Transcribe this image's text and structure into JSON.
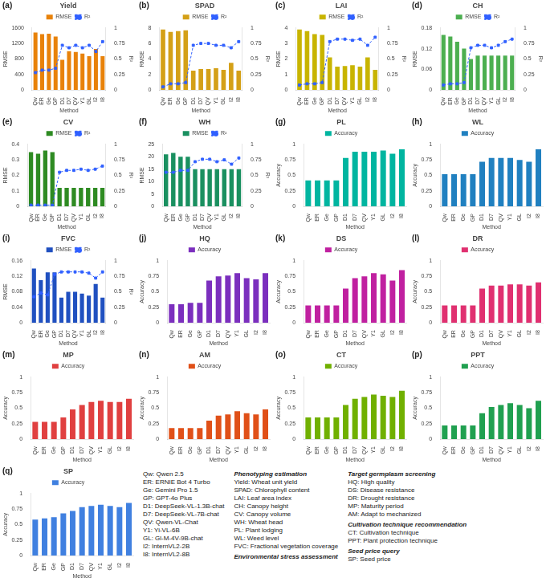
{
  "chart_data": [
    {
      "type": "bar",
      "title": "Yield",
      "annotations": [
        "(a)"
      ],
      "xlabel": "Method",
      "ylabel": "RMSE",
      "y2label": "R²",
      "categories": [
        "Qw",
        "ER",
        "Ge",
        "GP",
        "D1",
        "D7",
        "QV",
        "Y1",
        "GL",
        "I2",
        "I8"
      ],
      "series": [
        {
          "name": "RMSE",
          "color": "#E8820A",
          "values": [
            1480,
            1440,
            1450,
            1380,
            780,
            1000,
            980,
            940,
            870,
            1060,
            870
          ]
        },
        {
          "name": "R²",
          "type": "line",
          "axis": "y2",
          "color": "#3060FF",
          "marker": "square",
          "line_style": "dashed",
          "values": [
            0.28,
            0.32,
            0.32,
            0.35,
            0.72,
            0.68,
            0.72,
            0.68,
            0.72,
            0.62,
            0.78
          ]
        }
      ],
      "ylim": [
        0,
        1600
      ],
      "yticks": [
        0,
        400,
        800,
        1200,
        1600
      ],
      "y2lim": [
        0.0,
        1.0
      ],
      "y2ticks": [
        0,
        0.25,
        0.5,
        0.75,
        1
      ],
      "grid": false,
      "legend": "top"
    },
    {
      "type": "bar",
      "title": "SPAD",
      "annotations": [
        "(b)"
      ],
      "xlabel": "Method",
      "ylabel": "RMSE",
      "y2label": "R²",
      "categories": [
        "Qw",
        "ER",
        "Ge",
        "GP",
        "D1",
        "D7",
        "QV",
        "Y1",
        "GL",
        "I2",
        "I8"
      ],
      "series": [
        {
          "name": "RMSE",
          "color": "#D4A017",
          "values": [
            7.8,
            7.5,
            7.6,
            7.7,
            2.5,
            2.7,
            2.7,
            2.8,
            2.6,
            3.5,
            2.5
          ]
        },
        {
          "name": "R²",
          "type": "line",
          "axis": "y2",
          "color": "#3060FF",
          "marker": "square",
          "line_style": "dashed",
          "values": [
            0.05,
            0.1,
            0.1,
            0.12,
            0.72,
            0.75,
            0.75,
            0.72,
            0.72,
            0.68,
            0.78
          ]
        }
      ],
      "ylim": [
        0,
        8
      ],
      "yticks": [
        0,
        2,
        4,
        6,
        8
      ],
      "y2lim": [
        0.0,
        1.0
      ],
      "y2ticks": [
        0,
        0.25,
        0.5,
        0.75,
        1
      ],
      "grid": false,
      "legend": "top"
    },
    {
      "type": "bar",
      "title": "LAI",
      "annotations": [
        "(c)"
      ],
      "xlabel": "Method",
      "ylabel": "RMSE",
      "y2label": "R²",
      "categories": [
        "Qw",
        "ER",
        "Ge",
        "GP",
        "D1",
        "D7",
        "QV",
        "Y1",
        "GL",
        "I2",
        "I8"
      ],
      "series": [
        {
          "name": "RMSE",
          "color": "#C8B400",
          "values": [
            3.9,
            3.8,
            3.6,
            3.55,
            2.1,
            1.5,
            1.55,
            1.6,
            1.5,
            2.1,
            1.3
          ]
        },
        {
          "name": "R²",
          "type": "line",
          "axis": "y2",
          "color": "#3060FF",
          "marker": "square",
          "line_style": "dashed",
          "values": [
            0.08,
            0.1,
            0.1,
            0.12,
            0.78,
            0.82,
            0.82,
            0.8,
            0.82,
            0.72,
            0.85
          ]
        }
      ],
      "ylim": [
        0,
        4.0
      ],
      "yticks": [
        0,
        1,
        2,
        3,
        4
      ],
      "y2lim": [
        0.0,
        1.0
      ],
      "y2ticks": [
        0,
        0.25,
        0.5,
        0.75,
        1
      ],
      "grid": false,
      "legend": "top"
    },
    {
      "type": "bar",
      "title": "CH",
      "annotations": [
        "(d)"
      ],
      "xlabel": "Method",
      "ylabel": "RMSE",
      "y2label": "R²",
      "categories": [
        "Qw",
        "ER",
        "Ge",
        "GP",
        "D1",
        "D7",
        "QV",
        "Y1",
        "GL",
        "I2",
        "I8"
      ],
      "series": [
        {
          "name": "RMSE",
          "color": "#4CAF50",
          "values": [
            0.16,
            0.155,
            0.14,
            0.12,
            0.09,
            0.1,
            0.1,
            0.1,
            0.1,
            0.1,
            0.1
          ]
        },
        {
          "name": "R²",
          "type": "line",
          "axis": "y2",
          "color": "#3060FF",
          "marker": "square",
          "line_style": "dashed",
          "values": [
            0.08,
            0.1,
            0.1,
            0.12,
            0.68,
            0.72,
            0.72,
            0.68,
            0.72,
            0.78,
            0.82
          ]
        }
      ],
      "ylim": [
        0,
        0.18
      ],
      "yticks": [
        0,
        0.06,
        0.12,
        0.18
      ],
      "y2lim": [
        0.0,
        1.0
      ],
      "y2ticks": [
        0,
        0.25,
        0.5,
        0.75,
        1
      ],
      "grid": false,
      "legend": "top"
    },
    {
      "type": "bar",
      "title": "CV",
      "annotations": [
        "(e)"
      ],
      "xlabel": "Method",
      "ylabel": "RMSE",
      "y2label": "R²",
      "categories": [
        "Qw",
        "ER",
        "Ge",
        "GP",
        "D1",
        "D7",
        "QV",
        "Y1",
        "GL",
        "I2",
        "I8"
      ],
      "series": [
        {
          "name": "RMSE",
          "color": "#2E8B22",
          "values": [
            0.35,
            0.34,
            0.36,
            0.35,
            0.12,
            0.12,
            0.12,
            0.12,
            0.12,
            0.12,
            0.12
          ]
        },
        {
          "name": "R²",
          "type": "line",
          "axis": "y2",
          "color": "#3060FF",
          "marker": "square",
          "line_style": "dashed",
          "values": [
            0.02,
            0.02,
            0.02,
            0.02,
            0.55,
            0.58,
            0.58,
            0.6,
            0.58,
            0.6,
            0.65
          ]
        }
      ],
      "ylim": [
        0,
        0.4
      ],
      "yticks": [
        0,
        0.1,
        0.2,
        0.3,
        0.4
      ],
      "y2lim": [
        0.0,
        1.0
      ],
      "y2ticks": [
        0,
        0.25,
        0.5,
        0.75,
        1
      ],
      "grid": false,
      "legend": "top"
    },
    {
      "type": "bar",
      "title": "WH",
      "annotations": [
        "(f)"
      ],
      "xlabel": "Method",
      "ylabel": "RMSE",
      "y2label": "R²",
      "categories": [
        "Qw",
        "ER",
        "Ge",
        "GP",
        "D1",
        "D7",
        "QV",
        "Y1",
        "GL",
        "I2",
        "I8"
      ],
      "series": [
        {
          "name": "RMSE",
          "color": "#1A9060",
          "values": [
            21,
            21.5,
            20,
            20,
            15,
            15,
            15,
            15,
            15,
            15,
            15
          ]
        },
        {
          "name": "R²",
          "type": "line",
          "axis": "y2",
          "color": "#3060FF",
          "marker": "square",
          "line_style": "dashed",
          "values": [
            0.55,
            0.55,
            0.58,
            0.58,
            0.72,
            0.76,
            0.76,
            0.72,
            0.75,
            0.68,
            0.78
          ]
        }
      ],
      "ylim": [
        0,
        25
      ],
      "yticks": [
        0,
        5,
        10,
        15,
        20,
        25
      ],
      "y2lim": [
        0.0,
        1.0
      ],
      "y2ticks": [
        0,
        0.25,
        0.5,
        0.75,
        1
      ],
      "grid": false,
      "legend": "top"
    },
    {
      "type": "bar",
      "title": "PL",
      "annotations": [
        "(g)"
      ],
      "xlabel": "Method",
      "ylabel": "Accuracy",
      "categories": [
        "Qw",
        "ER",
        "Ge",
        "GP",
        "D1",
        "D7",
        "QV",
        "Y1",
        "GL",
        "I2",
        "I8"
      ],
      "series": [
        {
          "name": "Accuracy",
          "color": "#00B5A0",
          "values": [
            0.42,
            0.42,
            0.42,
            0.42,
            0.78,
            0.88,
            0.88,
            0.88,
            0.9,
            0.85,
            0.92
          ]
        }
      ],
      "ylim": [
        0,
        1.0
      ],
      "yticks": [
        0,
        0.25,
        0.5,
        0.75,
        1
      ],
      "grid": false,
      "legend": "top"
    },
    {
      "type": "bar",
      "title": "WL",
      "annotations": [
        "(h)"
      ],
      "xlabel": "Method",
      "ylabel": "Accuracy",
      "categories": [
        "Qw",
        "ER",
        "Ge",
        "GP",
        "D1",
        "D7",
        "QV",
        "Y1",
        "GL",
        "I2",
        "I8"
      ],
      "series": [
        {
          "name": "Accuracy",
          "color": "#2080C0",
          "values": [
            0.52,
            0.52,
            0.52,
            0.52,
            0.72,
            0.78,
            0.78,
            0.78,
            0.75,
            0.72,
            0.92
          ]
        }
      ],
      "ylim": [
        0,
        1.0
      ],
      "yticks": [
        0,
        0.25,
        0.5,
        0.75,
        1
      ],
      "grid": false,
      "legend": "top"
    },
    {
      "type": "bar",
      "title": "FVC",
      "annotations": [
        "(i)"
      ],
      "xlabel": "Method",
      "ylabel": "RMSE",
      "y2label": "R²",
      "categories": [
        "Qw",
        "ER",
        "Ge",
        "GP",
        "D1",
        "D7",
        "QV",
        "Y1",
        "GL",
        "I2",
        "I8"
      ],
      "series": [
        {
          "name": "RMSE",
          "color": "#2050C0",
          "values": [
            0.14,
            0.11,
            0.13,
            0.13,
            0.065,
            0.08,
            0.08,
            0.075,
            0.07,
            0.1,
            0.065
          ]
        },
        {
          "name": "R²",
          "type": "line",
          "axis": "y2",
          "color": "#3060FF",
          "marker": "square",
          "line_style": "dashed",
          "values": [
            0.42,
            0.48,
            0.45,
            0.78,
            0.82,
            0.82,
            0.82,
            0.82,
            0.8,
            0.72,
            0.82
          ]
        }
      ],
      "ylim": [
        0,
        0.16
      ],
      "yticks": [
        0,
        0.04,
        0.08,
        0.12,
        0.16
      ],
      "y2lim": [
        0.0,
        1.0
      ],
      "y2ticks": [
        0,
        0.25,
        0.5,
        0.75,
        1
      ],
      "grid": false,
      "legend": "top"
    },
    {
      "type": "bar",
      "title": "HQ",
      "annotations": [
        "(j)"
      ],
      "xlabel": "Method",
      "ylabel": "Accuracy",
      "categories": [
        "Qw",
        "ER",
        "Ge",
        "GP",
        "D1",
        "D7",
        "QV",
        "Y1",
        "GL",
        "I2",
        "I8"
      ],
      "series": [
        {
          "name": "Accuracy",
          "color": "#7B2FBE",
          "values": [
            0.3,
            0.3,
            0.32,
            0.32,
            0.68,
            0.75,
            0.76,
            0.8,
            0.72,
            0.7,
            0.8
          ]
        }
      ],
      "ylim": [
        0,
        1.0
      ],
      "yticks": [
        0,
        0.25,
        0.5,
        0.75,
        1
      ],
      "grid": false,
      "legend": "top"
    },
    {
      "type": "bar",
      "title": "DS",
      "annotations": [
        "(k)"
      ],
      "xlabel": "Method",
      "ylabel": "Accuracy",
      "categories": [
        "Qw",
        "ER",
        "Ge",
        "GP",
        "D1",
        "D7",
        "QV",
        "Y1",
        "GL",
        "I2",
        "I8"
      ],
      "series": [
        {
          "name": "Accuracy",
          "color": "#C020A0",
          "values": [
            0.28,
            0.28,
            0.28,
            0.28,
            0.55,
            0.72,
            0.75,
            0.8,
            0.78,
            0.68,
            0.85
          ]
        }
      ],
      "ylim": [
        0,
        1.0
      ],
      "yticks": [
        0,
        0.25,
        0.5,
        0.75,
        1
      ],
      "grid": false,
      "legend": "top"
    },
    {
      "type": "bar",
      "title": "DR",
      "annotations": [
        "(l)"
      ],
      "xlabel": "Method",
      "ylabel": "Accuracy",
      "categories": [
        "Qw",
        "ER",
        "Ge",
        "GP",
        "D1",
        "D7",
        "QV",
        "Y1",
        "GL",
        "I2",
        "I8"
      ],
      "series": [
        {
          "name": "Accuracy",
          "color": "#E03070",
          "values": [
            0.28,
            0.28,
            0.28,
            0.28,
            0.55,
            0.6,
            0.6,
            0.62,
            0.62,
            0.6,
            0.65
          ]
        }
      ],
      "ylim": [
        0,
        1.0
      ],
      "yticks": [
        0,
        0.25,
        0.5,
        0.75,
        1
      ],
      "grid": false,
      "legend": "top"
    },
    {
      "type": "bar",
      "title": "MP",
      "annotations": [
        "(m)"
      ],
      "xlabel": "Method",
      "ylabel": "Accuracy",
      "categories": [
        "Qw",
        "ER",
        "Ge",
        "GP",
        "D1",
        "D7",
        "QV",
        "Y1",
        "GL",
        "I2",
        "I8"
      ],
      "series": [
        {
          "name": "Accuracy",
          "color": "#E04040",
          "values": [
            0.28,
            0.28,
            0.28,
            0.35,
            0.48,
            0.55,
            0.6,
            0.62,
            0.6,
            0.6,
            0.65
          ]
        }
      ],
      "ylim": [
        0,
        1.0
      ],
      "yticks": [
        0,
        0.25,
        0.5,
        0.75,
        1
      ],
      "grid": false,
      "legend": "top"
    },
    {
      "type": "bar",
      "title": "AM",
      "annotations": [
        "(n)"
      ],
      "xlabel": "Method",
      "ylabel": "Accuracy",
      "categories": [
        "Qw",
        "ER",
        "Ge",
        "GP",
        "D1",
        "D7",
        "QV",
        "Y1",
        "GL",
        "I2",
        "I8"
      ],
      "series": [
        {
          "name": "Accuracy",
          "color": "#E05018",
          "values": [
            0.18,
            0.18,
            0.18,
            0.18,
            0.3,
            0.38,
            0.4,
            0.45,
            0.42,
            0.4,
            0.48
          ]
        }
      ],
      "ylim": [
        0,
        1.0
      ],
      "yticks": [
        0,
        0.25,
        0.5,
        0.75,
        1
      ],
      "grid": false,
      "legend": "top"
    },
    {
      "type": "bar",
      "title": "CT",
      "annotations": [
        "(o)"
      ],
      "xlabel": "Method",
      "ylabel": "Accuracy",
      "categories": [
        "Qw",
        "ER",
        "Ge",
        "GP",
        "D1",
        "D7",
        "QV",
        "Y1",
        "GL",
        "I2",
        "I8"
      ],
      "series": [
        {
          "name": "Accuracy",
          "color": "#70B000",
          "values": [
            0.35,
            0.35,
            0.35,
            0.35,
            0.55,
            0.65,
            0.68,
            0.72,
            0.7,
            0.68,
            0.78
          ]
        }
      ],
      "ylim": [
        0,
        1.0
      ],
      "yticks": [
        0,
        0.25,
        0.5,
        0.75,
        1
      ],
      "grid": false,
      "legend": "top"
    },
    {
      "type": "bar",
      "title": "PPT",
      "annotations": [
        "(p)"
      ],
      "xlabel": "Method",
      "ylabel": "Accuracy",
      "categories": [
        "Qw",
        "ER",
        "Ge",
        "GP",
        "D1",
        "D7",
        "QV",
        "Y1",
        "GL",
        "I2",
        "I8"
      ],
      "series": [
        {
          "name": "Accuracy",
          "color": "#20A050",
          "values": [
            0.22,
            0.22,
            0.22,
            0.22,
            0.42,
            0.52,
            0.55,
            0.58,
            0.55,
            0.5,
            0.62
          ]
        }
      ],
      "ylim": [
        0,
        1.0
      ],
      "yticks": [
        0,
        0.25,
        0.5,
        0.75,
        1
      ],
      "grid": false,
      "legend": "top"
    },
    {
      "type": "bar",
      "title": "SP",
      "annotations": [
        "(q)"
      ],
      "xlabel": "Method",
      "ylabel": "Accuracy",
      "categories": [
        "Qw",
        "ER",
        "Ge",
        "GP",
        "D1",
        "D7",
        "QV",
        "Y1",
        "GL",
        "I2",
        "I8"
      ],
      "series": [
        {
          "name": "Accuracy",
          "color": "#4080E0",
          "values": [
            0.58,
            0.6,
            0.62,
            0.68,
            0.72,
            0.78,
            0.8,
            0.82,
            0.8,
            0.78,
            0.85
          ]
        }
      ],
      "ylim": [
        0,
        1.0
      ],
      "yticks": [
        0,
        0.25,
        0.5,
        0.75,
        1
      ],
      "grid": false,
      "legend": "top"
    }
  ],
  "annotations": [
    {
      "lines": [
        "Qw: Qwen 2.5",
        "ER: ERNIE Bot 4 Turbo",
        "Ge: Gemini Pro 1.5",
        "GP: GPT-4o Plus",
        "D1: DeepSeek-VL-1.3B-chat",
        "D7: DeepSeek-VL-7B-chat",
        "QV: Qwen-VL-Chat",
        "Y1: Yi-VL-6B",
        "GL: Gl-M-4V-9B-chat",
        "I2: InternVL2-2B",
        "I8: InternVL2-8B"
      ]
    },
    {
      "title": "Phenotyping estimation",
      "lines": [
        "Yield: Wheat unit yield",
        "SPAD: Chlorophyll content",
        "LAI: Leaf area index",
        "CH: Canopy height",
        "CV: Canopy volume",
        "WH: Wheat head",
        "PL: Plant lodging",
        "WL: Weed level",
        "FVC: Fractional vegetation coverage"
      ]
    },
    {
      "title": "Environmental stress assessment"
    },
    {
      "title": "Target germplasm screening",
      "lines": [
        "HQ: High quality",
        "DS: Disease resistance",
        "DR: Drought resistance",
        "MP: Maturity period",
        "AM: Adapt to mechanized"
      ]
    },
    {
      "title": "Cultivation technique recommendation",
      "lines": [
        "CT: Cultivation technique",
        "PPT: Plant protection technique"
      ]
    },
    {
      "title": "Seed price query",
      "lines": [
        "SP: Seed price"
      ]
    }
  ]
}
